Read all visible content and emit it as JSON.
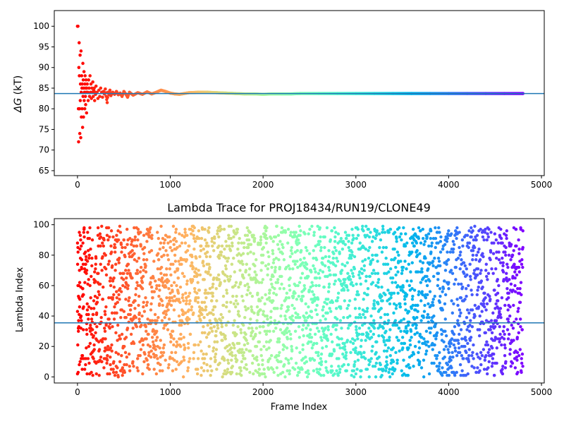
{
  "chart_data": [
    {
      "type": "scatter",
      "title": "",
      "xlabel": "",
      "ylabel": "ΔG (kT)",
      "ylabel_symbol": "ΔG",
      "ylabel_unit": " (kT)",
      "xlim": [
        -250,
        5030
      ],
      "ylim": [
        63.8,
        103.8
      ],
      "xticks": [
        0,
        1000,
        2000,
        3000,
        4000,
        5000
      ],
      "yticks": [
        65,
        70,
        75,
        80,
        85,
        90,
        95,
        100
      ],
      "colormap": "rainbow (red at frame 0 → violet at last frame)",
      "hline": {
        "y": 83.7,
        "color": "#1f77b4"
      },
      "series": [
        {
          "description": "running free-energy estimate per frame; large scatter early, converging to ~83.7",
          "points": [
            [
              0,
              100
            ],
            [
              5,
              100
            ],
            [
              10,
              80
            ],
            [
              12,
              72
            ],
            [
              15,
              90
            ],
            [
              18,
              96
            ],
            [
              20,
              88
            ],
            [
              22,
              80
            ],
            [
              25,
              74
            ],
            [
              28,
              93
            ],
            [
              30,
              82
            ],
            [
              32,
              86
            ],
            [
              35,
              73
            ],
            [
              38,
              94
            ],
            [
              40,
              84
            ],
            [
              42,
              78
            ],
            [
              45,
              88
            ],
            [
              48,
              85
            ],
            [
              50,
              80
            ],
            [
              52,
              86
            ],
            [
              55,
              75.5
            ],
            [
              58,
              91
            ],
            [
              60,
              83
            ],
            [
              62,
              87
            ],
            [
              65,
              78
            ],
            [
              68,
              85
            ],
            [
              70,
              89
            ],
            [
              72,
              82
            ],
            [
              75,
              84
            ],
            [
              78,
              80
            ],
            [
              80,
              86
            ],
            [
              82,
              88
            ],
            [
              85,
              83
            ],
            [
              88,
              81
            ],
            [
              90,
              85
            ],
            [
              92,
              87
            ],
            [
              95,
              84
            ],
            [
              98,
              79
            ],
            [
              100,
              85
            ],
            [
              105,
              86
            ],
            [
              110,
              84
            ],
            [
              115,
              82
            ],
            [
              120,
              87
            ],
            [
              125,
              85
            ],
            [
              130,
              83
            ],
            [
              135,
              88
            ],
            [
              140,
              84
            ],
            [
              145,
              86
            ],
            [
              150,
              82.5
            ],
            [
              155,
              85
            ],
            [
              160,
              84
            ],
            [
              165,
              86.5
            ],
            [
              170,
              83
            ],
            [
              175,
              84.5
            ],
            [
              180,
              85
            ],
            [
              185,
              82
            ],
            [
              190,
              84
            ],
            [
              195,
              83.5
            ],
            [
              200,
              85.5
            ],
            [
              210,
              84
            ],
            [
              220,
              82.5
            ],
            [
              230,
              84.5
            ],
            [
              240,
              83
            ],
            [
              250,
              85
            ],
            [
              260,
              84
            ],
            [
              270,
              82.8
            ],
            [
              280,
              84.2
            ],
            [
              290,
              83.6
            ],
            [
              300,
              84.8
            ],
            [
              310,
              83
            ],
            [
              320,
              81.5
            ],
            [
              330,
              84
            ],
            [
              340,
              83.4
            ],
            [
              350,
              84.5
            ],
            [
              360,
              83.2
            ],
            [
              380,
              84
            ],
            [
              400,
              83.5
            ],
            [
              420,
              84.2
            ],
            [
              440,
              83.4
            ],
            [
              460,
              83.8
            ],
            [
              480,
              83
            ],
            [
              500,
              84.2
            ],
            [
              520,
              83.6
            ],
            [
              540,
              82.8
            ],
            [
              560,
              84
            ],
            [
              600,
              83.3
            ],
            [
              650,
              83.9
            ],
            [
              700,
              83.5
            ],
            [
              750,
              84.1
            ],
            [
              800,
              83.6
            ],
            [
              850,
              84
            ],
            [
              900,
              84.5
            ],
            [
              950,
              84.2
            ],
            [
              1000,
              83.8
            ],
            [
              1050,
              83.6
            ],
            [
              1100,
              83.5
            ],
            [
              1150,
              83.7
            ],
            [
              1200,
              83.9
            ],
            [
              1300,
              84
            ],
            [
              1400,
              84
            ],
            [
              1500,
              83.9
            ],
            [
              1600,
              83.8
            ],
            [
              1700,
              83.7
            ],
            [
              1800,
              83.6
            ],
            [
              1900,
              83.6
            ],
            [
              2000,
              83.5
            ],
            [
              2100,
              83.6
            ],
            [
              2200,
              83.6
            ],
            [
              2300,
              83.6
            ],
            [
              2400,
              83.7
            ],
            [
              2600,
              83.7
            ],
            [
              2800,
              83.7
            ],
            [
              3000,
              83.7
            ],
            [
              3200,
              83.7
            ],
            [
              3400,
              83.7
            ],
            [
              3600,
              83.7
            ],
            [
              3800,
              83.7
            ],
            [
              4000,
              83.7
            ],
            [
              4200,
              83.7
            ],
            [
              4400,
              83.7
            ],
            [
              4600,
              83.7
            ],
            [
              4800,
              83.7
            ]
          ]
        }
      ]
    },
    {
      "type": "scatter",
      "title": "Lambda Trace for PROJ18434/RUN19/CLONE49",
      "xlabel": "Frame Index",
      "ylabel": "Lambda Index",
      "xlim": [
        -250,
        5030
      ],
      "ylim": [
        -4,
        104
      ],
      "xticks": [
        0,
        1000,
        2000,
        3000,
        4000,
        5000
      ],
      "yticks": [
        0,
        20,
        40,
        60,
        80,
        100
      ],
      "colormap": "rainbow (red at frame 0 → violet at last frame)",
      "hline": {
        "y": 35.5,
        "color": "#1f77b4"
      },
      "series": [
        {
          "description": "lambda index visited at each frame; approximately uniform over 0–99 for frames 0–4800",
          "frame_range": [
            0,
            4800
          ],
          "lambda_range": [
            0,
            99
          ],
          "frame_step": 1.5,
          "sample_points": [
            [
              0,
              2
            ],
            [
              0,
              88
            ],
            [
              5,
              60
            ],
            [
              10,
              30
            ],
            [
              20,
              95
            ],
            [
              40,
              12
            ],
            [
              60,
              45
            ],
            [
              100,
              70
            ],
            [
              200,
              25
            ],
            [
              500,
              90
            ],
            [
              1000,
              55
            ],
            [
              1500,
              5
            ],
            [
              2000,
              80
            ],
            [
              2500,
              40
            ],
            [
              3000,
              98
            ],
            [
              3500,
              18
            ],
            [
              4000,
              62
            ],
            [
              4500,
              33
            ],
            [
              4800,
              85
            ]
          ]
        }
      ]
    }
  ]
}
